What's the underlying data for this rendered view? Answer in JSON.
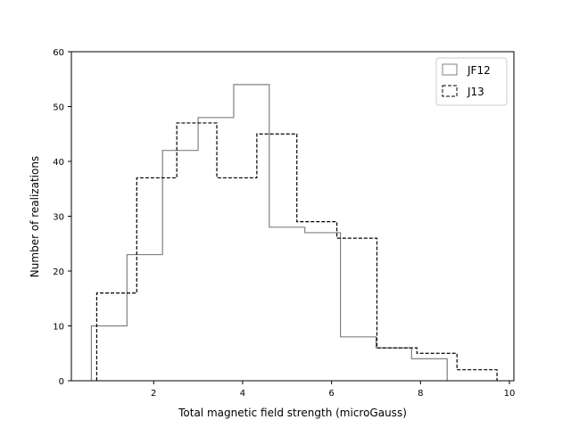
{
  "chart_data": {
    "type": "histogram",
    "xlabel": "Total magnetic field strength (microGauss)",
    "ylabel": "Number of realizations",
    "xlim": [
      0.15,
      10.1
    ],
    "ylim": [
      0,
      60
    ],
    "x_ticks": [
      2,
      4,
      6,
      8,
      10
    ],
    "y_ticks": [
      0,
      10,
      20,
      30,
      40,
      50,
      60
    ],
    "grid": false,
    "legend_position": "top-right",
    "series": [
      {
        "name": "JF12",
        "style": "solid",
        "color": "#808080",
        "bin_edges": [
          0.6,
          1.4,
          2.2,
          3.0,
          3.8,
          4.6,
          5.4,
          6.2,
          7.0,
          7.8,
          8.6
        ],
        "counts": [
          10,
          23,
          42,
          48,
          54,
          28,
          27,
          8,
          6,
          4
        ]
      },
      {
        "name": "J13",
        "style": "dashed",
        "color": "#000000",
        "bin_edges": [
          0.72,
          1.62,
          2.52,
          3.42,
          4.32,
          5.22,
          6.12,
          7.02,
          7.92,
          8.82,
          9.72
        ],
        "counts": [
          16,
          37,
          47,
          37,
          45,
          29,
          26,
          6,
          5,
          2
        ]
      }
    ]
  }
}
